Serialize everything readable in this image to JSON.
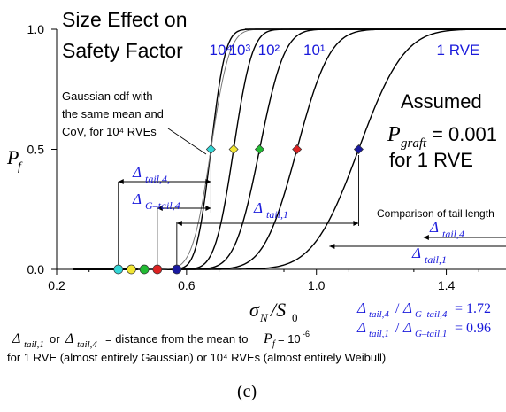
{
  "chart_data": {
    "type": "line",
    "title_line1": "Size Effect on",
    "title_line2": "Safety Factor",
    "xlabel": "σ_N/S_0",
    "ylabel": "P_f",
    "xlim": [
      0.2,
      1.6
    ],
    "ylim": [
      0.0,
      1.0
    ],
    "xticks": [
      0.2,
      0.6,
      1.0,
      1.4
    ],
    "xtick_labels": [
      "0.2",
      "0.6",
      "1.0",
      "1.4"
    ],
    "yticks": [
      0.0,
      0.5,
      1.0
    ],
    "ytick_labels": [
      "0.0",
      "0.5",
      "1.0"
    ],
    "curves": [
      {
        "label": "10⁴",
        "mean": 0.675,
        "std": 0.035
      },
      {
        "label": "10³",
        "mean": 0.745,
        "std": 0.045
      },
      {
        "label": "10²",
        "mean": 0.825,
        "std": 0.06
      },
      {
        "label": "10¹",
        "mean": 0.94,
        "std": 0.08
      },
      {
        "label": "1 RVE",
        "mean": 1.13,
        "std": 0.11
      }
    ],
    "curve_label_color": "#1a1adb",
    "gaussian_note": [
      "Gaussian cdf with",
      "the same mean and",
      "CoV, for 10⁴ RVEs"
    ],
    "mean_points": [
      {
        "x": 0.675,
        "y": 0.5,
        "color": "#33d6d6"
      },
      {
        "x": 0.745,
        "y": 0.5,
        "color": "#f2e633"
      },
      {
        "x": 0.825,
        "y": 0.5,
        "color": "#22bb33"
      },
      {
        "x": 0.94,
        "y": 0.5,
        "color": "#dd2222"
      },
      {
        "x": 1.13,
        "y": 0.5,
        "color": "#1a1aa0"
      }
    ],
    "tail_points": [
      {
        "x": 0.39,
        "y": 0.0,
        "color": "#33d6d6"
      },
      {
        "x": 0.43,
        "y": 0.0,
        "color": "#f2e633"
      },
      {
        "x": 0.47,
        "y": 0.0,
        "color": "#22bb33"
      },
      {
        "x": 0.51,
        "y": 0.0,
        "color": "#dd2222"
      },
      {
        "x": 0.57,
        "y": 0.0,
        "color": "#1a1aa0"
      }
    ],
    "assumed": {
      "line1": "Assumed",
      "pgraft_value": "= 0.001",
      "line3": "for 1 RVE"
    },
    "delta_tail4_label": "Δ tail,4,",
    "delta_gtail4_label": "Δ G–tail,4",
    "delta_tail1_label": "Δ tail,1",
    "comparison_title": "Comparison of tail length",
    "comparison_tail4": "Δ tail,4",
    "comparison_tail1": "Δ tail,1",
    "ratio1": "Δ tail,4 / Δ G–tail,4 = 1.72",
    "ratio2": "Δ tail,1 / Δ G–tail,1 = 0.96",
    "caption_line1": "Δ tail,1 or Δ tail,4 = distance from the mean to P_f = 10⁻⁶",
    "caption_line2": "for 1 RVE (almost entirely Gaussian) or 10⁴ RVEs (almost entirely Weibull)",
    "subfigure_label": "(c)"
  }
}
